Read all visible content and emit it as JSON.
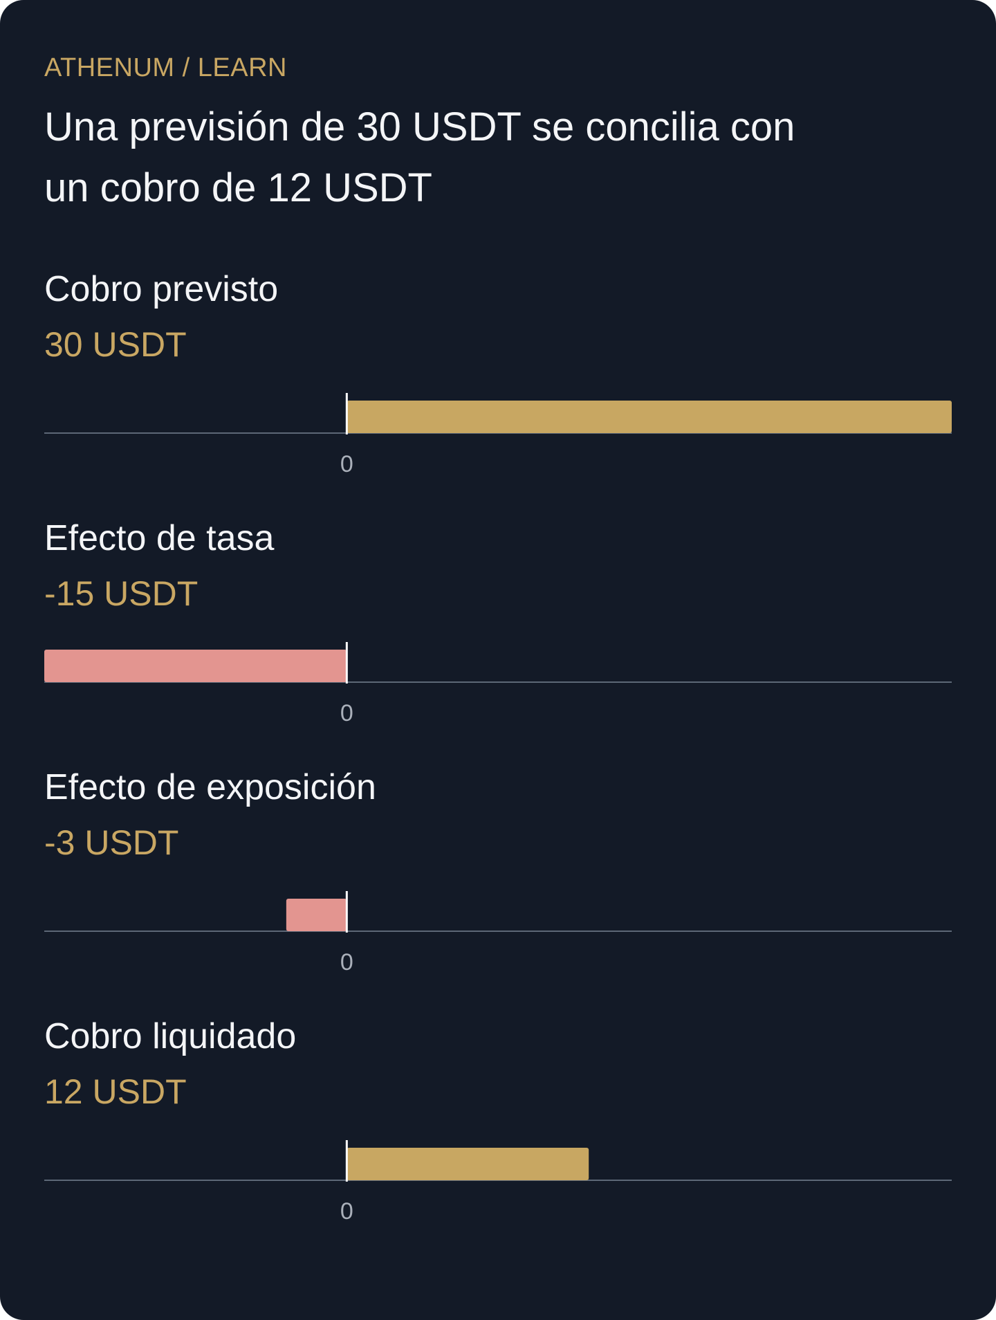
{
  "header": {
    "eyebrow": "ATHENUM / LEARN",
    "title": "Una previsión de 30 USDT se concilia con un cobro de 12 USDT"
  },
  "colors": {
    "background": "#131a27",
    "accent": "#c9a763",
    "positive_bar": "#c8a762",
    "negative_bar": "#e39590"
  },
  "chart_data": {
    "type": "bar",
    "orientation": "horizontal",
    "unit": "USDT",
    "xlim": [
      -15,
      30
    ],
    "rows": [
      {
        "label": "Cobro previsto",
        "value_text": "30 USDT",
        "value": 30,
        "tick_label": "0"
      },
      {
        "label": "Efecto de tasa",
        "value_text": "-15 USDT",
        "value": -15,
        "tick_label": "0"
      },
      {
        "label": "Efecto de exposición",
        "value_text": "-3 USDT",
        "value": -3,
        "tick_label": "0"
      },
      {
        "label": "Cobro liquidado",
        "value_text": "12 USDT",
        "value": 12,
        "tick_label": "0"
      }
    ]
  }
}
